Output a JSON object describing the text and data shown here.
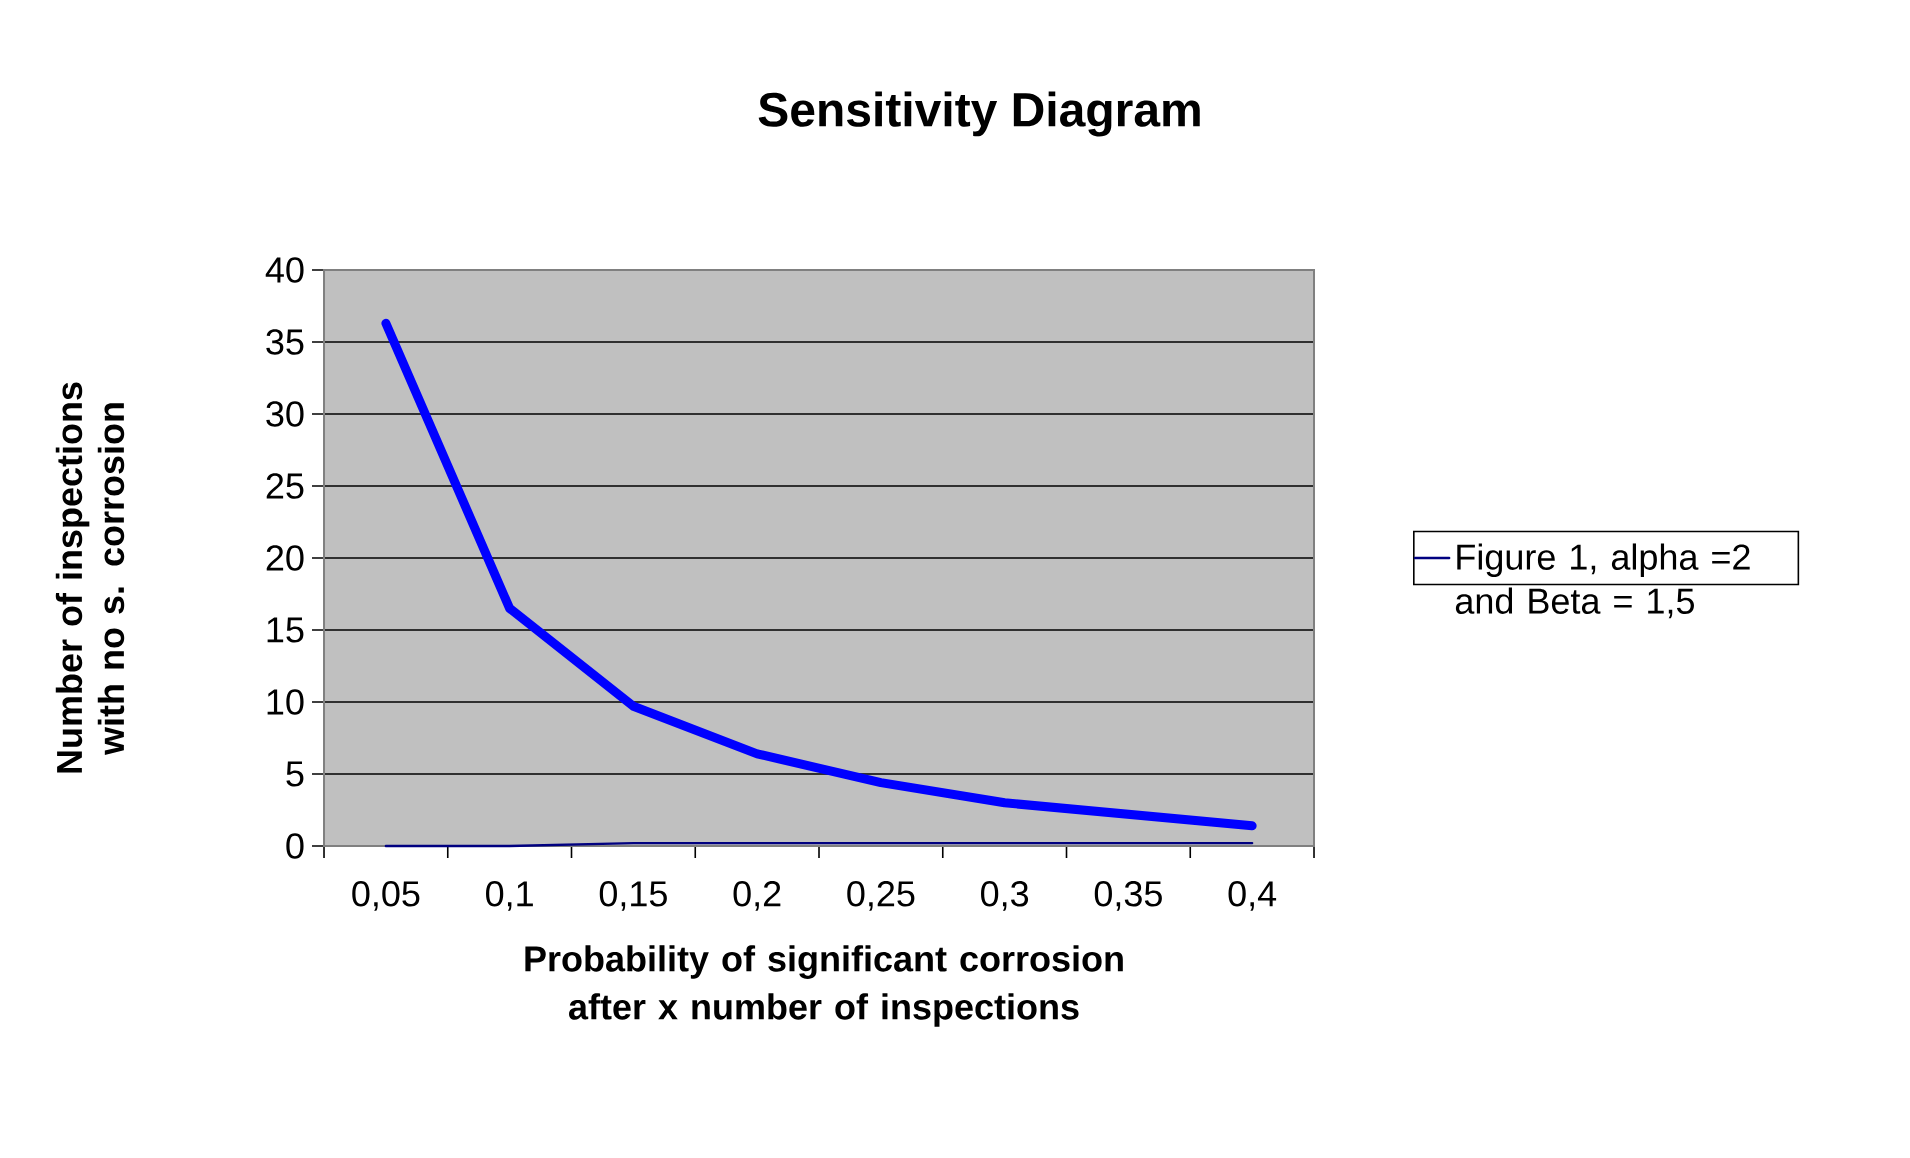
{
  "chart_data": {
    "type": "line",
    "title": "Sensitivity Diagram",
    "xlabel": "Probability of significant corrosion after x number of inspections",
    "ylabel": "Number of inspections with no s. corrosion",
    "categories": [
      "0,05",
      "0,1",
      "0,15",
      "0,2",
      "0,25",
      "0,3",
      "0,35",
      "0,4"
    ],
    "series": [
      {
        "color": "#0000ff",
        "values": [
          36.3,
          16.5,
          9.7,
          6.4,
          4.4,
          3.0,
          2.2,
          1.4
        ]
      },
      {
        "name": "Figure 1, alpha =2 and Beta = 1,5",
        "color": "#000080",
        "values": [
          0,
          0,
          0.2,
          0.2,
          0.2,
          0.2,
          0.2,
          0.2
        ]
      }
    ],
    "ylim": [
      0,
      40
    ],
    "yticks": [
      0,
      5,
      10,
      15,
      20,
      25,
      30,
      35,
      40
    ],
    "grid": "y",
    "legend": "right"
  }
}
